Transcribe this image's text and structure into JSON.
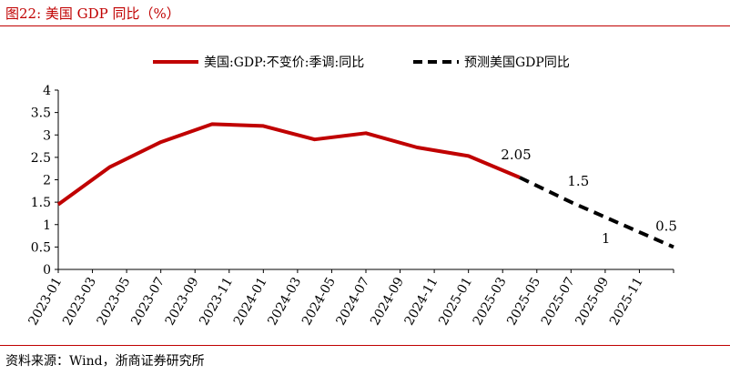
{
  "header": {
    "title": "图22:   美国 GDP 同比（%）"
  },
  "footer": {
    "source": "资料来源：Wind，浙商证券研究所"
  },
  "colors": {
    "accent": "#c00000",
    "forecast": "#000000",
    "axis": "#000000"
  },
  "chart_data": {
    "type": "line",
    "title": "",
    "xlabel": "",
    "ylabel": "",
    "ylim": [
      0,
      4
    ],
    "yticks": [
      "0",
      "0.5",
      "1",
      "1.5",
      "2",
      "2.5",
      "3",
      "3.5",
      "4"
    ],
    "xticks": [
      "2023-01",
      "2023-03",
      "2023-05",
      "2023-07",
      "2023-09",
      "2023-11",
      "2024-01",
      "2024-03",
      "2024-05",
      "2024-07",
      "2024-09",
      "2024-11",
      "2025-01",
      "2025-03",
      "2025-05",
      "2025-07",
      "2025-09",
      "2025-11"
    ],
    "grid": false,
    "legend_position": "top",
    "series": [
      {
        "name": "美国:GDP:不变价:季调:同比",
        "style": "solid",
        "points": [
          {
            "x": "2023-01",
            "y": 1.45
          },
          {
            "x": "2023-04",
            "y": 2.28
          },
          {
            "x": "2023-07",
            "y": 2.84
          },
          {
            "x": "2023-10",
            "y": 3.24
          },
          {
            "x": "2024-01",
            "y": 3.2
          },
          {
            "x": "2024-04",
            "y": 2.9
          },
          {
            "x": "2024-07",
            "y": 3.04
          },
          {
            "x": "2024-10",
            "y": 2.72
          },
          {
            "x": "2025-01",
            "y": 2.53
          },
          {
            "x": "2025-04",
            "y": 2.05
          }
        ]
      },
      {
        "name": "预测美国GDP同比",
        "style": "dashed",
        "points": [
          {
            "x": "2025-04",
            "y": 2.05
          },
          {
            "x": "2025-07",
            "y": 1.5
          },
          {
            "x": "2025-10",
            "y": 1.0
          },
          {
            "x": "2026-01",
            "y": 0.5
          }
        ]
      }
    ],
    "data_labels": [
      {
        "x": "2025-04",
        "y": 2.05,
        "text": "2.05"
      },
      {
        "x": "2025-07",
        "y": 1.5,
        "text": "1.5"
      },
      {
        "x": "2025-10",
        "y": 1.0,
        "text": "1"
      },
      {
        "x": "2026-01",
        "y": 0.5,
        "text": "0.5"
      }
    ]
  }
}
